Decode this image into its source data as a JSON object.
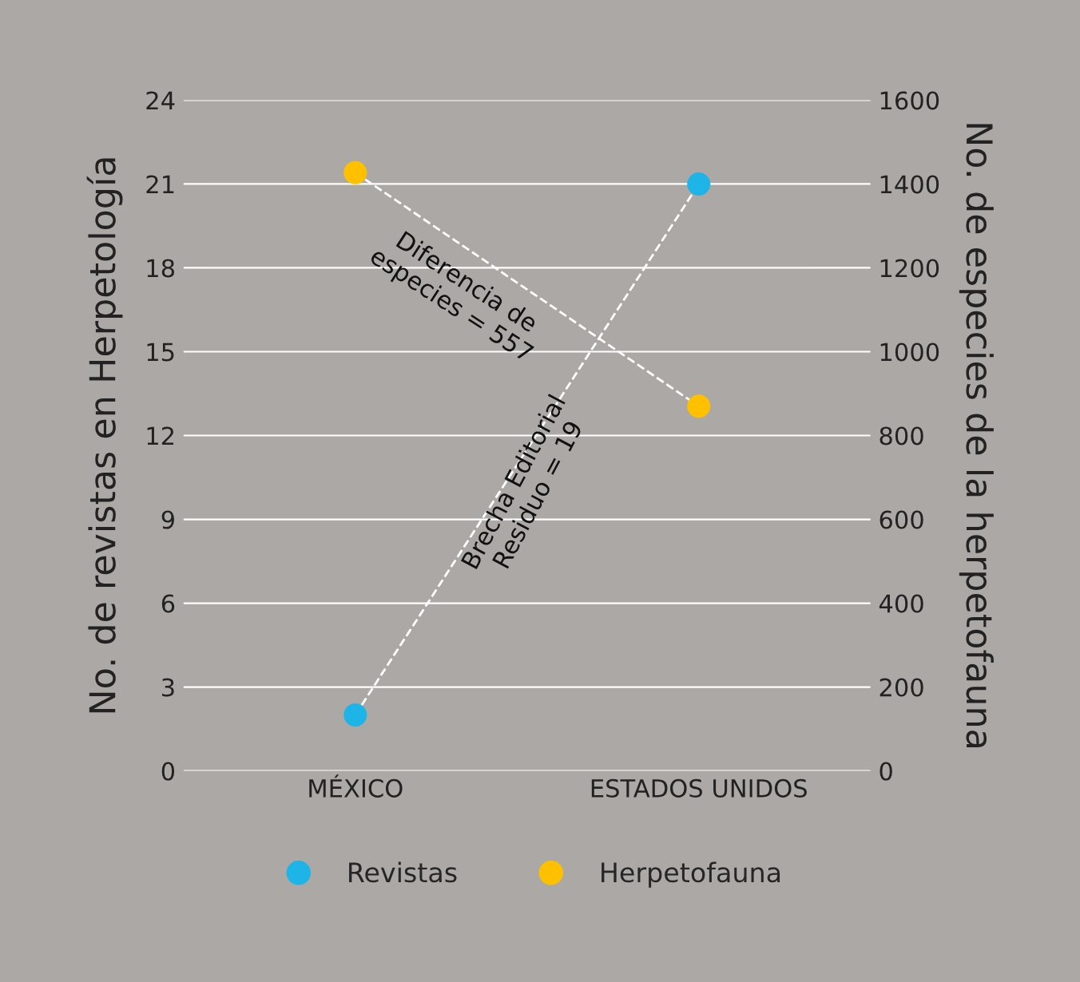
{
  "chart_data": {
    "type": "line",
    "categories": [
      "MÉXICO",
      "ESTADOS UNIDOS"
    ],
    "ylabel": "No. de revistas en Herpetología",
    "y2label": "No. de especies de la herpetofauna",
    "series": [
      {
        "name": "Revistas",
        "color": "#1eb4e8",
        "values": [
          2,
          21
        ]
      },
      {
        "name": "Herpetofauna",
        "color": "#ffc000",
        "values": [
          1427,
          870
        ],
        "axis": "y2"
      }
    ],
    "ylim": [
      0,
      24
    ],
    "yticks": [
      0,
      3,
      6,
      9,
      12,
      15,
      18,
      21,
      24
    ],
    "y2lim": [
      0,
      1600
    ],
    "y2ticks": [
      0,
      200,
      400,
      600,
      800,
      1000,
      1200,
      1400,
      1600
    ],
    "annotations": [
      "Diferencia de\nespecies = 557",
      "Brecha Editorial\nResiduo = 19"
    ],
    "grid": "y",
    "legend": "bottom",
    "marker": "circle",
    "line_style": "dashed"
  }
}
